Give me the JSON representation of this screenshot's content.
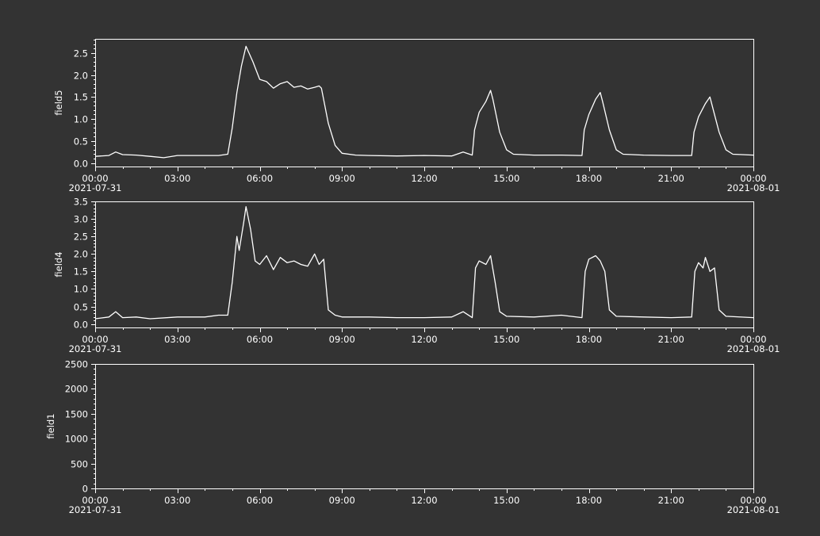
{
  "theme": {
    "background": "#333333",
    "axis_color": "#ffffff",
    "line_color": "#ffffff"
  },
  "chart_data": [
    {
      "type": "line",
      "ylabel": "field5",
      "ylim": [
        -0.08,
        2.82
      ],
      "yticks": [
        0.0,
        0.5,
        1.0,
        1.5,
        2.0,
        2.5
      ],
      "yticklabels": [
        "0.0",
        "0.5",
        "1.0",
        "1.5",
        "2.0",
        "2.5"
      ],
      "xlim": [
        "2021-07-31 00:00",
        "2021-08-01 00:00"
      ],
      "xticklabels": [
        "00:00",
        "03:00",
        "06:00",
        "09:00",
        "12:00",
        "15:00",
        "18:00",
        "21:00",
        "00:00"
      ],
      "xdatelabels": [
        "2021-07-31",
        "",
        "",
        "",
        "",
        "",
        "",
        "",
        "2021-08-01"
      ],
      "series": [
        {
          "x": [
            "00:00",
            "00:30",
            "00:45",
            "01:00",
            "01:30",
            "02:00",
            "02:30",
            "03:00",
            "04:00",
            "04:30",
            "04:50",
            "05:00",
            "05:10",
            "05:20",
            "05:30",
            "05:45",
            "06:00",
            "06:15",
            "06:30",
            "06:45",
            "07:00",
            "07:15",
            "07:30",
            "07:45",
            "08:00",
            "08:10",
            "08:15",
            "08:30",
            "08:45",
            "09:00",
            "09:30",
            "10:00",
            "11:00",
            "12:00",
            "13:00",
            "13:25",
            "13:45",
            "13:50",
            "14:00",
            "14:15",
            "14:25",
            "14:30",
            "14:45",
            "15:00",
            "15:15",
            "16:00",
            "17:00",
            "17:45",
            "17:50",
            "18:00",
            "18:15",
            "18:25",
            "18:30",
            "18:45",
            "19:00",
            "19:15",
            "20:00",
            "21:00",
            "21:45",
            "21:50",
            "22:00",
            "22:15",
            "22:25",
            "22:30",
            "22:45",
            "23:00",
            "23:15",
            "00:00"
          ],
          "y": [
            0.15,
            0.17,
            0.25,
            0.19,
            0.18,
            0.15,
            0.12,
            0.17,
            0.17,
            0.17,
            0.2,
            0.8,
            1.6,
            2.2,
            2.65,
            2.3,
            1.9,
            1.85,
            1.7,
            1.8,
            1.85,
            1.72,
            1.75,
            1.68,
            1.72,
            1.75,
            1.7,
            0.9,
            0.4,
            0.22,
            0.18,
            0.17,
            0.16,
            0.17,
            0.16,
            0.25,
            0.18,
            0.75,
            1.15,
            1.4,
            1.65,
            1.45,
            0.7,
            0.3,
            0.2,
            0.18,
            0.18,
            0.17,
            0.75,
            1.1,
            1.45,
            1.6,
            1.4,
            0.75,
            0.3,
            0.2,
            0.18,
            0.17,
            0.17,
            0.7,
            1.05,
            1.35,
            1.5,
            1.3,
            0.7,
            0.3,
            0.2,
            0.18
          ]
        }
      ]
    },
    {
      "type": "line",
      "ylabel": "field4",
      "ylim": [
        -0.1,
        3.5
      ],
      "yticks": [
        0.0,
        0.5,
        1.0,
        1.5,
        2.0,
        2.5,
        3.0,
        3.5
      ],
      "yticklabels": [
        "0.0",
        "0.5",
        "1.0",
        "1.5",
        "2.0",
        "2.5",
        "3.0",
        "3.5"
      ],
      "xlim": [
        "2021-07-31 00:00",
        "2021-08-01 00:00"
      ],
      "xticklabels": [
        "00:00",
        "03:00",
        "06:00",
        "09:00",
        "12:00",
        "15:00",
        "18:00",
        "21:00",
        "00:00"
      ],
      "xdatelabels": [
        "2021-07-31",
        "",
        "",
        "",
        "",
        "",
        "",
        "",
        "2021-08-01"
      ],
      "series": [
        {
          "x": [
            "00:00",
            "00:30",
            "00:45",
            "01:00",
            "01:30",
            "02:00",
            "03:00",
            "04:00",
            "04:30",
            "04:50",
            "05:00",
            "05:10",
            "05:15",
            "05:25",
            "05:30",
            "05:40",
            "05:50",
            "06:00",
            "06:15",
            "06:30",
            "06:45",
            "07:00",
            "07:15",
            "07:30",
            "07:45",
            "08:00",
            "08:10",
            "08:20",
            "08:30",
            "08:45",
            "09:00",
            "10:00",
            "11:00",
            "12:00",
            "13:00",
            "13:25",
            "13:45",
            "13:52",
            "14:00",
            "14:15",
            "14:25",
            "14:35",
            "14:45",
            "15:00",
            "16:00",
            "17:00",
            "17:45",
            "17:52",
            "18:00",
            "18:15",
            "18:25",
            "18:35",
            "18:45",
            "19:00",
            "20:00",
            "21:00",
            "21:45",
            "21:52",
            "22:00",
            "22:10",
            "22:15",
            "22:25",
            "22:35",
            "22:45",
            "23:00",
            "00:00"
          ],
          "y": [
            0.15,
            0.2,
            0.35,
            0.18,
            0.2,
            0.15,
            0.2,
            0.2,
            0.25,
            0.25,
            1.2,
            2.5,
            2.1,
            2.9,
            3.35,
            2.7,
            1.8,
            1.7,
            1.95,
            1.55,
            1.9,
            1.75,
            1.8,
            1.7,
            1.65,
            2.0,
            1.7,
            1.85,
            0.4,
            0.25,
            0.2,
            0.2,
            0.18,
            0.18,
            0.2,
            0.35,
            0.18,
            1.6,
            1.8,
            1.7,
            1.95,
            1.2,
            0.35,
            0.22,
            0.2,
            0.25,
            0.18,
            1.5,
            1.85,
            1.95,
            1.8,
            1.5,
            0.4,
            0.22,
            0.2,
            0.18,
            0.2,
            1.5,
            1.75,
            1.6,
            1.9,
            1.5,
            1.6,
            0.4,
            0.22,
            0.18
          ]
        }
      ]
    },
    {
      "type": "line",
      "ylabel": "field1",
      "ylim": [
        0,
        2500
      ],
      "yticks": [
        0,
        500,
        1000,
        1500,
        2000,
        2500
      ],
      "yticklabels": [
        "0",
        "500",
        "1000",
        "1500",
        "2000",
        "2500"
      ],
      "xlim": [
        "2021-07-31 00:00",
        "2021-08-01 00:00"
      ],
      "xticklabels": [
        "00:00",
        "03:00",
        "06:00",
        "09:00",
        "12:00",
        "15:00",
        "18:00",
        "21:00",
        "00:00"
      ],
      "xdatelabels": [
        "2021-07-31",
        "",
        "",
        "",
        "",
        "",
        "",
        "",
        "2021-08-01"
      ],
      "series": []
    }
  ]
}
